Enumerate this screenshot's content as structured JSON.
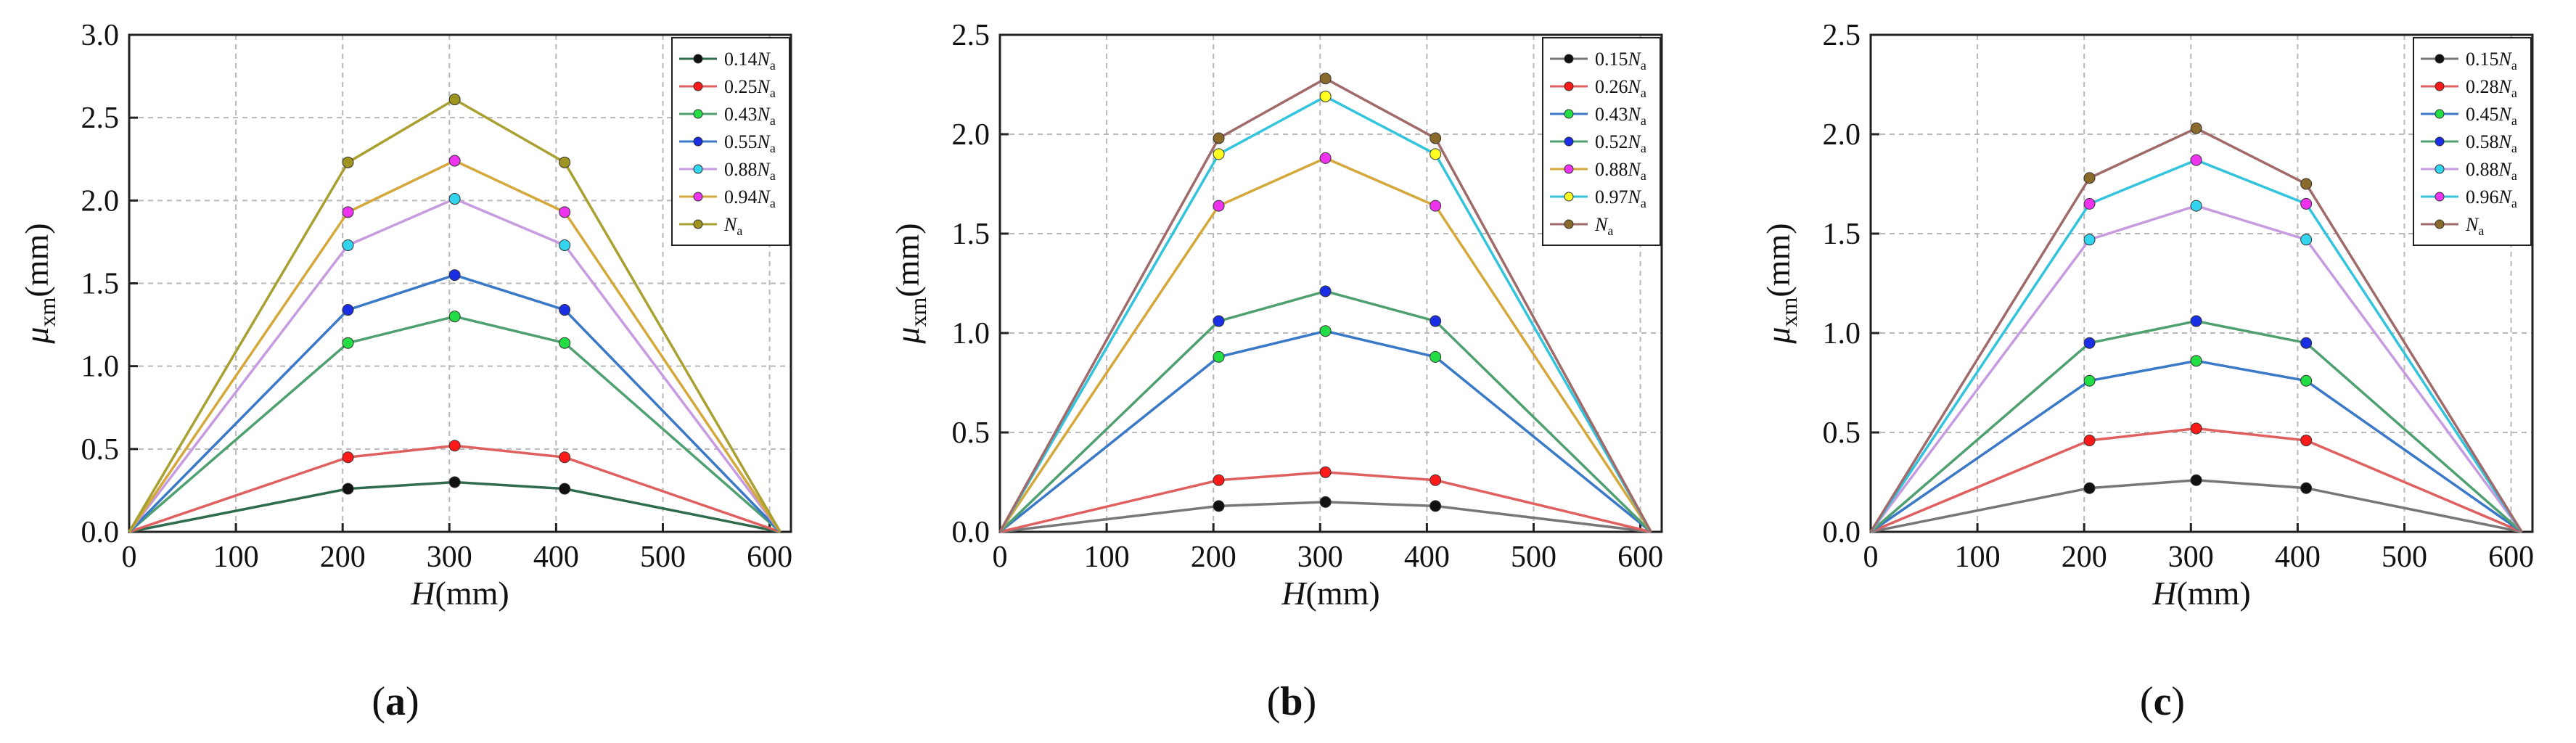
{
  "chart_data": [
    {
      "type": "line",
      "panel_label": "a",
      "xlabel": "H(mm)",
      "xlabel_italic": "H",
      "xlabel_unit": "(mm)",
      "ylabel_sym": "μ",
      "ylabel_sub": "xm",
      "ylabel_unit": "(mm)",
      "xlim": [
        0,
        620
      ],
      "ylim": [
        0,
        3.0
      ],
      "xticks": [
        0,
        100,
        200,
        300,
        400,
        500,
        600
      ],
      "yticks": [
        "0.0",
        "0.5",
        "1.0",
        "1.5",
        "2.0",
        "2.5",
        "3.0"
      ],
      "x": [
        0,
        205,
        305,
        408,
        610
      ],
      "legend_position": "top-right",
      "series": [
        {
          "coef": "0.14",
          "name": "0.14Na",
          "line": "#2e6b4f",
          "marker": "#111111",
          "values": [
            0,
            0.26,
            0.3,
            0.26,
            0
          ]
        },
        {
          "coef": "0.25",
          "name": "0.25Na",
          "line": "#e06060",
          "marker": "#ff1a1a",
          "values": [
            0,
            0.45,
            0.52,
            0.45,
            0
          ]
        },
        {
          "coef": "0.43",
          "name": "0.43Na",
          "line": "#4fa070",
          "marker": "#22dd44",
          "values": [
            0,
            1.14,
            1.3,
            1.14,
            0
          ]
        },
        {
          "coef": "0.55",
          "name": "0.55Na",
          "line": "#3a78c8",
          "marker": "#1a2ee6",
          "values": [
            0,
            1.34,
            1.55,
            1.34,
            0
          ]
        },
        {
          "coef": "0.88",
          "name": "0.88Na",
          "line": "#c79be0",
          "marker": "#33d4ee",
          "values": [
            0,
            1.73,
            2.01,
            1.73,
            0
          ]
        },
        {
          "coef": "0.94",
          "name": "0.94Na",
          "line": "#d4a83a",
          "marker": "#ee33ee",
          "values": [
            0,
            1.93,
            2.24,
            1.93,
            0
          ]
        },
        {
          "coef": "",
          "name": "Na",
          "line": "#a8a030",
          "marker": "#a09420",
          "values": [
            0,
            2.23,
            2.61,
            2.23,
            0
          ]
        }
      ]
    },
    {
      "type": "line",
      "panel_label": "b",
      "xlabel": "H(mm)",
      "xlabel_italic": "H",
      "xlabel_unit": "(mm)",
      "ylabel_sym": "μ",
      "ylabel_sub": "xm",
      "ylabel_unit": "(mm)",
      "xlim": [
        0,
        620
      ],
      "ylim": [
        0,
        2.5
      ],
      "xticks": [
        0,
        100,
        200,
        300,
        400,
        500,
        600
      ],
      "yticks": [
        "0.0",
        "0.5",
        "1.0",
        "1.5",
        "2.0",
        "2.5"
      ],
      "x": [
        0,
        205,
        305,
        408,
        610
      ],
      "legend_position": "top-right",
      "series": [
        {
          "coef": "0.15",
          "name": "0.15Na",
          "line": "#777777",
          "marker": "#111111",
          "values": [
            0,
            0.13,
            0.15,
            0.13,
            0
          ]
        },
        {
          "coef": "0.26",
          "name": "0.26Na",
          "line": "#e06060",
          "marker": "#ff1a1a",
          "values": [
            0,
            0.26,
            0.3,
            0.26,
            0
          ]
        },
        {
          "coef": "0.43",
          "name": "0.43Na",
          "line": "#3a78c8",
          "marker": "#22dd44",
          "values": [
            0,
            0.88,
            1.01,
            0.88,
            0
          ]
        },
        {
          "coef": "0.52",
          "name": "0.52Na",
          "line": "#4fa070",
          "marker": "#1a2ee6",
          "values": [
            0,
            1.06,
            1.21,
            1.06,
            0
          ]
        },
        {
          "coef": "0.88",
          "name": "0.88Na",
          "line": "#d4a83a",
          "marker": "#ee33ee",
          "values": [
            0,
            1.64,
            1.88,
            1.64,
            0
          ]
        },
        {
          "coef": "0.97",
          "name": "0.97Na",
          "line": "#33c4dd",
          "marker": "#ffff22",
          "values": [
            0,
            1.9,
            2.19,
            1.9,
            0
          ]
        },
        {
          "coef": "",
          "name": "Na",
          "line": "#a06a6a",
          "marker": "#8a6a2a",
          "values": [
            0,
            1.98,
            2.28,
            1.98,
            0
          ]
        }
      ]
    },
    {
      "type": "line",
      "panel_label": "c",
      "xlabel": "H(mm)",
      "xlabel_italic": "H",
      "xlabel_unit": "(mm)",
      "ylabel_sym": "μ",
      "ylabel_sub": "xm",
      "ylabel_unit": "(mm)",
      "xlim": [
        0,
        620
      ],
      "ylim": [
        0,
        2.5
      ],
      "xticks": [
        0,
        100,
        200,
        300,
        400,
        500,
        600
      ],
      "yticks": [
        "0.0",
        "0.5",
        "1.0",
        "1.5",
        "2.0",
        "2.5"
      ],
      "x": [
        0,
        205,
        305,
        408,
        610
      ],
      "legend_position": "top-right",
      "series": [
        {
          "coef": "0.15",
          "name": "0.15Na",
          "line": "#777777",
          "marker": "#111111",
          "values": [
            0,
            0.22,
            0.26,
            0.22,
            0
          ]
        },
        {
          "coef": "0.28",
          "name": "0.28Na",
          "line": "#e06060",
          "marker": "#ff1a1a",
          "values": [
            0,
            0.46,
            0.52,
            0.46,
            0
          ]
        },
        {
          "coef": "0.45",
          "name": "0.45Na",
          "line": "#3a78c8",
          "marker": "#22dd44",
          "values": [
            0,
            0.76,
            0.86,
            0.76,
            0
          ]
        },
        {
          "coef": "0.58",
          "name": "0.58Na",
          "line": "#4fa070",
          "marker": "#1a2ee6",
          "values": [
            0,
            0.95,
            1.06,
            0.95,
            0
          ]
        },
        {
          "coef": "0.88",
          "name": "0.88Na",
          "line": "#c79be0",
          "marker": "#33d4ee",
          "values": [
            0,
            1.47,
            1.64,
            1.47,
            0
          ]
        },
        {
          "coef": "0.96",
          "name": "0.96Na",
          "line": "#33c4dd",
          "marker": "#ee33ee",
          "values": [
            0,
            1.65,
            1.87,
            1.65,
            0
          ]
        },
        {
          "coef": "",
          "name": "Na",
          "line": "#a06a6a",
          "marker": "#8a6a2a",
          "values": [
            0,
            1.78,
            2.03,
            1.75,
            0
          ]
        }
      ]
    }
  ]
}
